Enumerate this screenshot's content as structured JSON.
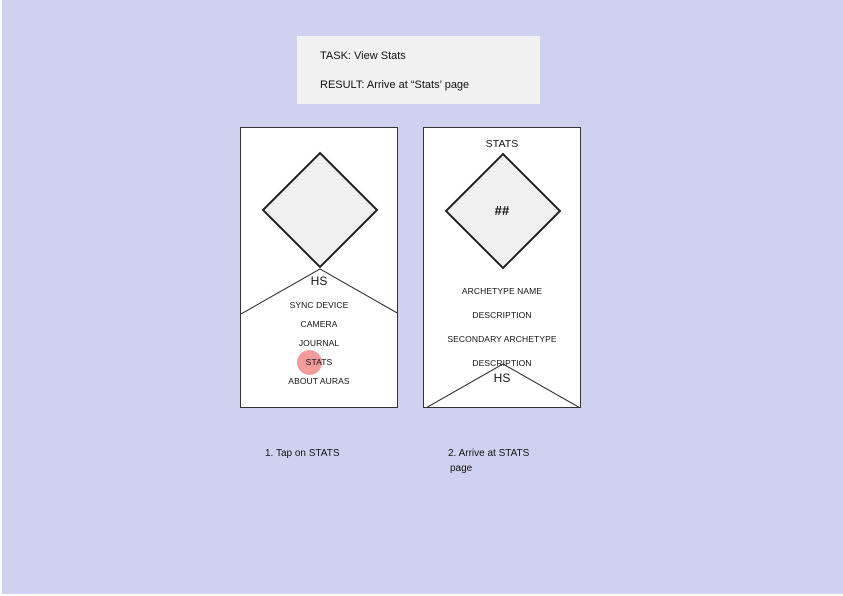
{
  "task": {
    "task_line": "TASK: View Stats",
    "result_line": "RESULT: Arrive at “Stats’ page"
  },
  "screen1": {
    "hs_label": "HS",
    "menu": [
      "SYNC DEVICE",
      "CAMERA",
      "JOURNAL",
      "STATS",
      "ABOUT AURAS"
    ]
  },
  "screen2": {
    "title": "STATS",
    "diamond_label": "##",
    "lines": [
      "ARCHETYPE NAME",
      "DESCRIPTION",
      "SECONDARY ARCHETYPE",
      "DESCRIPTION"
    ],
    "hs_label": "HS"
  },
  "captions": {
    "step1": "1. Tap on STATS",
    "step2_line1": "2. Arrive at STATS",
    "step2_line2": "page"
  },
  "colors": {
    "background": "#ced1f0",
    "task_box": "#f1f1f1",
    "diamond_fill": "#f0f0f0",
    "tap_indicator": "#f08a8a"
  }
}
